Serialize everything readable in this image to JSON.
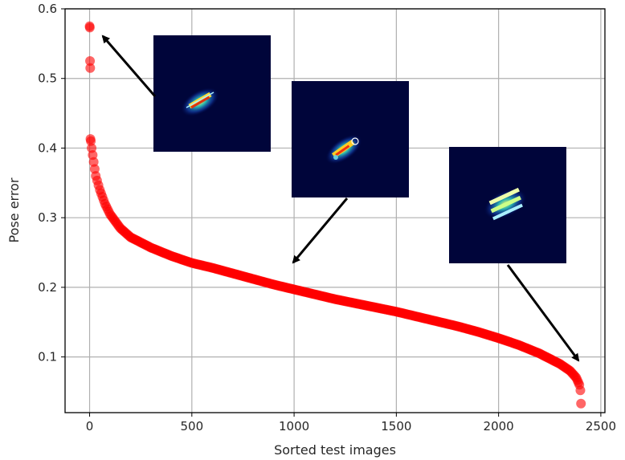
{
  "chart_data": {
    "type": "scatter",
    "title": "",
    "xlabel": "Sorted test images",
    "ylabel": "Pose error",
    "xlim": [
      -120,
      2520
    ],
    "ylim": [
      0.02,
      0.6
    ],
    "xticks": [
      0,
      500,
      1000,
      1500,
      2000,
      2500
    ],
    "yticks": [
      0.1,
      0.2,
      0.3,
      0.4,
      0.5,
      0.6
    ],
    "xtick_labels": [
      "0",
      "500",
      "1000",
      "1500",
      "2000",
      "2500"
    ],
    "ytick_labels": [
      "0.1",
      "0.2",
      "0.3",
      "0.4",
      "0.5",
      "0.6"
    ],
    "grid": true,
    "marker_color": "#ff0000",
    "series": [
      {
        "x": [
          0,
          1,
          2,
          3,
          4,
          6,
          10,
          20,
          30,
          50,
          75,
          100,
          150,
          200,
          300,
          400,
          500,
          600,
          700,
          800,
          900,
          1000,
          1100,
          1200,
          1300,
          1400,
          1500,
          1600,
          1700,
          1800,
          1900,
          2000,
          2100,
          2200,
          2300,
          2350,
          2380,
          2395,
          2400,
          2403
        ],
        "y": [
          0.575,
          0.573,
          0.525,
          0.515,
          0.413,
          0.41,
          0.4,
          0.38,
          0.36,
          0.34,
          0.32,
          0.305,
          0.285,
          0.272,
          0.257,
          0.245,
          0.235,
          0.228,
          0.22,
          0.212,
          0.204,
          0.197,
          0.19,
          0.183,
          0.177,
          0.171,
          0.165,
          0.158,
          0.151,
          0.144,
          0.136,
          0.127,
          0.117,
          0.105,
          0.09,
          0.08,
          0.07,
          0.06,
          0.052,
          0.033
        ]
      }
    ],
    "annotations": [
      {
        "kind": "image-inset",
        "name": "inset-high-error"
      },
      {
        "kind": "image-inset",
        "name": "inset-mid-error"
      },
      {
        "kind": "image-inset",
        "name": "inset-low-error"
      }
    ]
  }
}
